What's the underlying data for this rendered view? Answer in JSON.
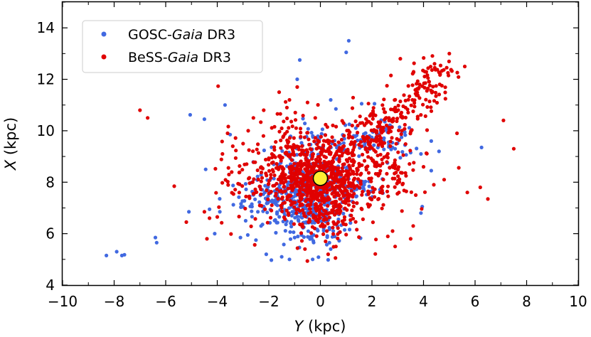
{
  "chart_data": {
    "type": "scatter",
    "title": "",
    "xlabel": {
      "italic": "Y",
      "rest": " (kpc)"
    },
    "ylabel": {
      "italic": "X",
      "rest": " (kpc)"
    },
    "xlim": [
      -10,
      10
    ],
    "ylim": [
      4,
      15
    ],
    "xticks": [
      -10,
      -8,
      -6,
      -4,
      -2,
      0,
      2,
      4,
      6,
      8,
      10
    ],
    "xtick_labels": [
      "−10",
      "−8",
      "−6",
      "−4",
      "−2",
      "0",
      "2",
      "4",
      "6",
      "8",
      "10"
    ],
    "yticks": [
      4,
      6,
      8,
      10,
      12,
      14
    ],
    "ytick_labels": [
      "4",
      "6",
      "8",
      "10",
      "12",
      "14"
    ],
    "grid": false,
    "legend_position": "top-left",
    "series": [
      {
        "name": "GOSC-Gaia DR3",
        "legend": {
          "pre": "GOSC-",
          "italic": "Gaia",
          "post": " DR3"
        },
        "color": "#4169e1",
        "points": [
          [
            -8.3,
            5.15
          ],
          [
            -7.9,
            5.3
          ],
          [
            -7.7,
            5.15
          ],
          [
            -7.6,
            5.18
          ],
          [
            -6.4,
            5.85
          ],
          [
            -6.35,
            5.65
          ],
          [
            -5.1,
            6.85
          ],
          [
            -5.05,
            10.62
          ],
          [
            -4.5,
            10.45
          ],
          [
            -4.45,
            8.5
          ],
          [
            -4.3,
            6.95
          ],
          [
            -4.1,
            6.0
          ],
          [
            -3.9,
            6.85
          ],
          [
            -3.7,
            11.0
          ],
          [
            -3.5,
            9.85
          ],
          [
            -3.1,
            5.85
          ],
          [
            -2.9,
            6.5
          ],
          [
            -2.5,
            5.75
          ],
          [
            -2.3,
            6.3
          ],
          [
            -2.1,
            5.2
          ],
          [
            -1.9,
            4.97
          ],
          [
            -1.5,
            5.1
          ],
          [
            -1.2,
            5.0
          ],
          [
            -1.0,
            5.85
          ],
          [
            -0.8,
            12.75
          ],
          [
            -0.9,
            12.0
          ],
          [
            -0.3,
            5.0
          ],
          [
            0.3,
            4.98
          ],
          [
            0.4,
            5.4
          ],
          [
            0.4,
            11.2
          ],
          [
            0.6,
            10.85
          ],
          [
            1.0,
            13.05
          ],
          [
            1.1,
            13.5
          ],
          [
            1.6,
            11.05
          ],
          [
            2.1,
            11.05
          ],
          [
            2.5,
            10.35
          ],
          [
            2.9,
            9.3
          ],
          [
            3.1,
            8.95
          ],
          [
            3.5,
            9.15
          ],
          [
            3.9,
            9.1
          ],
          [
            3.9,
            6.8
          ],
          [
            3.95,
            7.05
          ],
          [
            4.3,
            8.45
          ],
          [
            4.6,
            9.2
          ],
          [
            4.3,
            9.6
          ],
          [
            6.25,
            9.35
          ],
          [
            2.6,
            8.75
          ],
          [
            2.0,
            7.65
          ],
          [
            1.7,
            7.9
          ]
        ],
        "clusters": [
          {
            "cx": -0.4,
            "cy": 7.8,
            "sx": 0.85,
            "sy": 0.7,
            "n": 320
          },
          {
            "cx": -2.2,
            "cy": 7.3,
            "sx": 0.8,
            "sy": 0.35,
            "n": 70
          },
          {
            "cx": -1.0,
            "cy": 6.5,
            "sx": 0.7,
            "sy": 0.5,
            "n": 60
          },
          {
            "cx": 1.8,
            "cy": 9.65,
            "sx": 0.55,
            "sy": 0.28,
            "n": 55
          },
          {
            "cx": 2.8,
            "cy": 9.8,
            "sx": 0.4,
            "sy": 0.25,
            "n": 25
          },
          {
            "cx": 1.6,
            "cy": 7.75,
            "sx": 0.4,
            "sy": 0.2,
            "n": 30
          },
          {
            "cx": 0.2,
            "cy": 6.4,
            "sx": 0.6,
            "sy": 0.45,
            "n": 50
          },
          {
            "cx": -0.3,
            "cy": 9.4,
            "sx": 0.6,
            "sy": 0.5,
            "n": 40
          }
        ]
      },
      {
        "name": "BeSS-Gaia DR3",
        "legend": {
          "pre": "BeSS-",
          "italic": "Gaia",
          "post": " DR3"
        },
        "color": "#e00000",
        "points": [
          [
            -7.0,
            10.8
          ],
          [
            -6.7,
            10.5
          ],
          [
            -5.2,
            6.45
          ],
          [
            -4.5,
            6.85
          ],
          [
            -4.3,
            6.6
          ],
          [
            -4.0,
            6.65
          ],
          [
            -4.4,
            5.8
          ],
          [
            -3.6,
            9.9
          ],
          [
            -3.8,
            9.1
          ],
          [
            -3.4,
            9.4
          ],
          [
            -3.0,
            9.5
          ],
          [
            -2.8,
            10.0
          ],
          [
            -2.6,
            10.5
          ],
          [
            -2.2,
            10.8
          ],
          [
            -1.6,
            11.5
          ],
          [
            -1.2,
            11.2
          ],
          [
            -0.9,
            11.7
          ],
          [
            -1.3,
            10.9
          ],
          [
            -0.5,
            11.1
          ],
          [
            -0.2,
            10.5
          ],
          [
            0.9,
            10.3
          ],
          [
            0.6,
            5.5
          ],
          [
            0.3,
            5.2
          ],
          [
            -0.6,
            5.4
          ],
          [
            0.2,
            5.7
          ],
          [
            2.8,
            6.1
          ],
          [
            2.9,
            5.5
          ],
          [
            3.6,
            6.3
          ],
          [
            3.5,
            5.8
          ],
          [
            5.3,
            9.9
          ],
          [
            5.7,
            7.6
          ],
          [
            6.2,
            7.8
          ],
          [
            7.1,
            10.4
          ],
          [
            7.5,
            9.3
          ],
          [
            5.0,
            13.0
          ],
          [
            5.6,
            12.5
          ],
          [
            3.1,
            12.8
          ],
          [
            3.7,
            7.5
          ],
          [
            4.4,
            7.9
          ],
          [
            4.8,
            8.1
          ],
          [
            -1.9,
            6.9
          ],
          [
            0.5,
            6.9
          ]
        ],
        "clusters": [
          {
            "cx": -0.2,
            "cy": 8.0,
            "sx": 0.95,
            "sy": 0.75,
            "n": 620
          },
          {
            "cx": 0.0,
            "cy": 8.1,
            "sx": 2.0,
            "sy": 1.3,
            "n": 200
          },
          {
            "cx": -1.5,
            "cy": 9.4,
            "sx": 1.2,
            "sy": 0.8,
            "n": 70
          },
          {
            "cx": 1.2,
            "cy": 9.0,
            "sx": 0.8,
            "sy": 0.7,
            "n": 80
          },
          {
            "cx": 2.2,
            "cy": 9.9,
            "sx": 0.6,
            "sy": 0.45,
            "n": 80
          },
          {
            "cx": 3.0,
            "cy": 10.6,
            "sx": 0.5,
            "sy": 0.35,
            "n": 55
          },
          {
            "cx": 3.9,
            "cy": 11.5,
            "sx": 0.45,
            "sy": 0.35,
            "n": 55
          },
          {
            "cx": 4.6,
            "cy": 12.3,
            "sx": 0.35,
            "sy": 0.3,
            "n": 30
          },
          {
            "cx": 2.6,
            "cy": 8.2,
            "sx": 0.7,
            "sy": 0.5,
            "n": 40
          },
          {
            "cx": -2.8,
            "cy": 7.5,
            "sx": 0.8,
            "sy": 0.6,
            "n": 40
          },
          {
            "cx": 0.2,
            "cy": 6.6,
            "sx": 0.7,
            "sy": 0.6,
            "n": 50
          }
        ]
      }
    ],
    "sun_marker": {
      "x": 0.0,
      "y": 8.15,
      "fill": "#ffee33",
      "stroke": "#000000"
    }
  }
}
